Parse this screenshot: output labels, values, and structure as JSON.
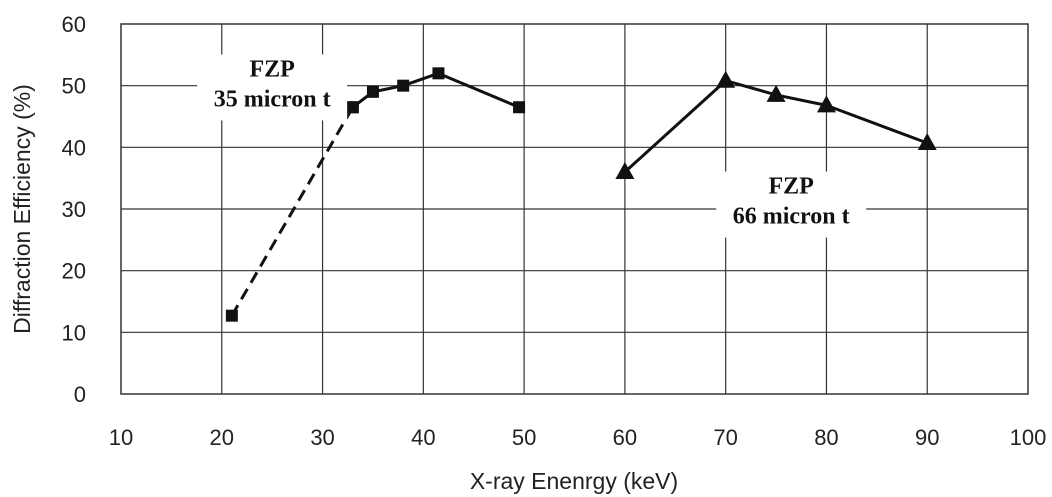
{
  "chart_data": {
    "type": "line",
    "xlabel": "X-ray Enenrgy (keV)",
    "ylabel": "Diffraction Efficiency (%)",
    "xlim": [
      10,
      100
    ],
    "ylim": [
      0,
      60
    ],
    "x_ticks": [
      "10",
      "20",
      "30",
      "40",
      "50",
      "60",
      "70",
      "80",
      "90",
      "100"
    ],
    "y_ticks": [
      "0",
      "10",
      "20",
      "30",
      "40",
      "50",
      "60"
    ],
    "grid": true,
    "series": [
      {
        "marker": "square",
        "line_style": "dashed",
        "x": [
          21,
          33
        ],
        "y": [
          12.7,
          46.5
        ]
      },
      {
        "marker": "square",
        "line_style": "solid",
        "x": [
          33,
          35,
          38,
          41.5,
          49.5
        ],
        "y": [
          46.5,
          49,
          50,
          52,
          46.5
        ]
      },
      {
        "marker": "triangle",
        "line_style": "solid",
        "x": [
          60,
          70,
          75,
          80,
          90
        ],
        "y": [
          36,
          50.8,
          48.5,
          46.8,
          40.7
        ]
      }
    ],
    "annotations": [
      {
        "lines": [
          "FZP",
          "35 micron t"
        ],
        "x": 25,
        "y": 51.5
      },
      {
        "lines": [
          "FZP",
          "66 micron t"
        ],
        "x": 76.5,
        "y": 32.5
      }
    ]
  }
}
